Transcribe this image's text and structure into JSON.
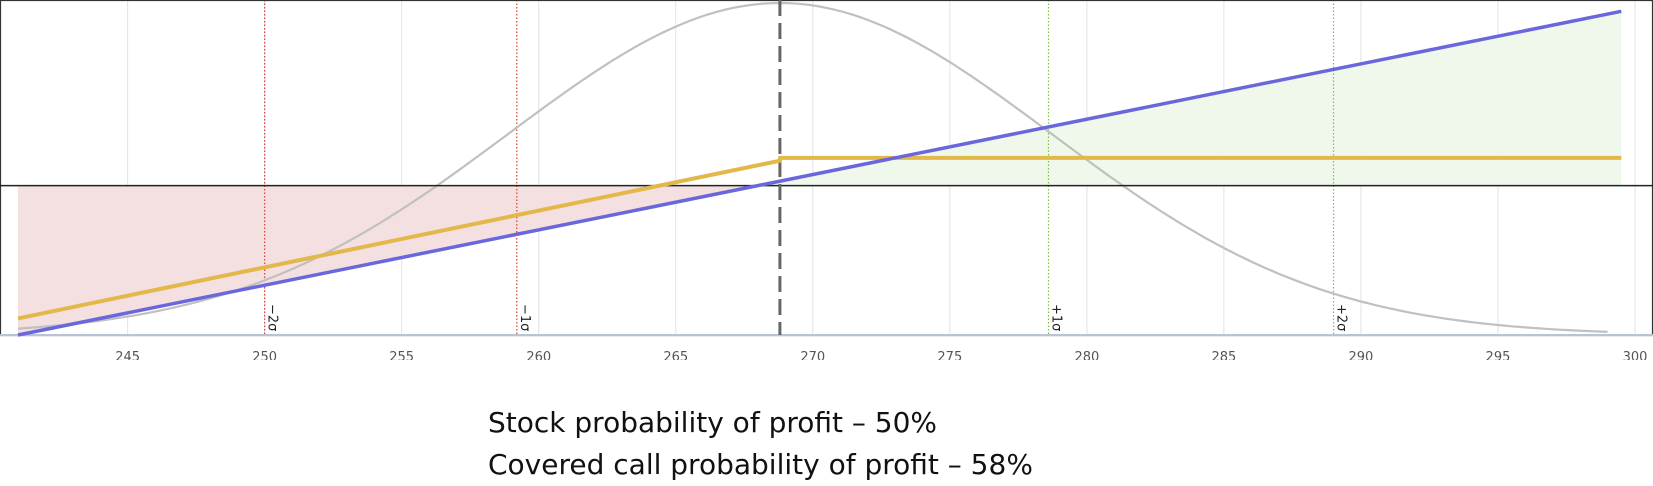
{
  "chart_data": {
    "type": "line",
    "title": "",
    "xlabel": "",
    "ylabel": "",
    "xlim": [
      241,
      300
    ],
    "ylim": [
      -27,
      33
    ],
    "ticks": [
      245,
      250,
      255,
      260,
      265,
      270,
      275,
      280,
      285,
      290,
      295,
      300
    ],
    "tick_labels": [
      "245",
      "250",
      "255",
      "260",
      "265",
      "270",
      "275",
      "280",
      "285",
      "290",
      "295",
      "300"
    ],
    "grid": true,
    "current_price": 268.8,
    "series": [
      {
        "key": "stock",
        "color": "#6a67dc",
        "x": [
          241,
          299.5
        ],
        "y": [
          -27,
          31.5
        ]
      },
      {
        "key": "covered_call",
        "color": "#e3b84a",
        "x": [
          241,
          268.8,
          268.8,
          299.5
        ],
        "y": [
          -24,
          4.5,
          5,
          5
        ]
      },
      {
        "key": "distribution",
        "color": "#c0c0c0",
        "mean": 268.8,
        "sd": 9.9,
        "x_end": 299
      }
    ],
    "sigma_lines": [
      {
        "label": "−2σ",
        "x": 250,
        "color": "#d9412c"
      },
      {
        "label": "−1σ",
        "x": 259.2,
        "color": "#d9412c"
      },
      {
        "label": "+1σ",
        "x": 278.6,
        "color": "#7dc043"
      },
      {
        "label": "+2σ",
        "x": 289.0,
        "color": "#7dc043"
      }
    ],
    "loss_fill_color": "#f3dede",
    "profit_fill_color": "#eef8ea"
  },
  "captions": {
    "stock": "Stock probability of profit – 50%",
    "covered_call": "Covered call probability of profit – 58%"
  }
}
